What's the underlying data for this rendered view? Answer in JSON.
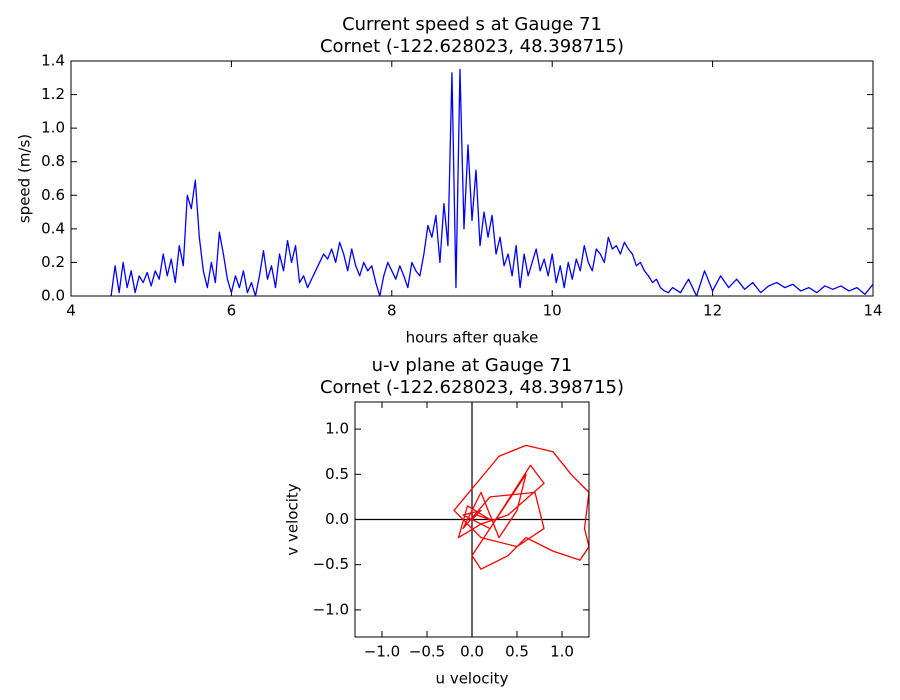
{
  "chart_data": [
    {
      "type": "line",
      "title": "Current speed s at Gauge 71",
      "subtitle": "Cornet  (-122.628023, 48.398715)",
      "x_label": "hours after quake",
      "y_label": "speed (m/s)",
      "color": "#0000ff",
      "x": [
        4.5,
        4.55,
        4.6,
        4.65,
        4.7,
        4.75,
        4.8,
        4.85,
        4.9,
        4.95,
        5.0,
        5.05,
        5.1,
        5.15,
        5.2,
        5.25,
        5.3,
        5.35,
        5.4,
        5.45,
        5.5,
        5.55,
        5.6,
        5.65,
        5.7,
        5.75,
        5.8,
        5.85,
        5.9,
        5.95,
        6.0,
        6.05,
        6.1,
        6.15,
        6.2,
        6.25,
        6.3,
        6.35,
        6.4,
        6.45,
        6.5,
        6.55,
        6.6,
        6.65,
        6.7,
        6.75,
        6.8,
        6.85,
        6.9,
        6.95,
        7.0,
        7.05,
        7.1,
        7.15,
        7.2,
        7.25,
        7.3,
        7.35,
        7.4,
        7.45,
        7.5,
        7.55,
        7.6,
        7.65,
        7.7,
        7.75,
        7.8,
        7.85,
        7.9,
        7.95,
        8.0,
        8.05,
        8.1,
        8.15,
        8.2,
        8.25,
        8.3,
        8.35,
        8.4,
        8.45,
        8.5,
        8.55,
        8.6,
        8.65,
        8.7,
        8.75,
        8.8,
        8.85,
        8.9,
        8.95,
        9.0,
        9.05,
        9.1,
        9.15,
        9.2,
        9.25,
        9.3,
        9.35,
        9.4,
        9.45,
        9.5,
        9.55,
        9.6,
        9.65,
        9.7,
        9.75,
        9.8,
        9.85,
        9.9,
        9.95,
        10.0,
        10.05,
        10.1,
        10.15,
        10.2,
        10.25,
        10.3,
        10.35,
        10.4,
        10.45,
        10.5,
        10.55,
        10.6,
        10.65,
        10.7,
        10.75,
        10.8,
        10.85,
        10.9,
        10.95,
        11.0,
        11.05,
        11.1,
        11.15,
        11.2,
        11.25,
        11.3,
        11.35,
        11.4,
        11.45,
        11.5,
        11.6,
        11.7,
        11.8,
        11.9,
        12.0,
        12.1,
        12.2,
        12.3,
        12.4,
        12.5,
        12.6,
        12.7,
        12.8,
        12.9,
        13.0,
        13.1,
        13.2,
        13.3,
        13.4,
        13.5,
        13.6,
        13.7,
        13.8,
        13.9,
        14.0
      ],
      "values": [
        0.0,
        0.18,
        0.02,
        0.2,
        0.05,
        0.15,
        0.02,
        0.12,
        0.08,
        0.14,
        0.06,
        0.15,
        0.1,
        0.25,
        0.12,
        0.22,
        0.08,
        0.3,
        0.18,
        0.6,
        0.52,
        0.69,
        0.35,
        0.15,
        0.05,
        0.2,
        0.08,
        0.38,
        0.25,
        0.1,
        0.02,
        0.12,
        0.05,
        0.15,
        0.02,
        0.08,
        0.0,
        0.12,
        0.27,
        0.1,
        0.18,
        0.05,
        0.25,
        0.15,
        0.33,
        0.2,
        0.3,
        0.08,
        0.12,
        0.05,
        0.1,
        0.15,
        0.2,
        0.25,
        0.22,
        0.28,
        0.2,
        0.32,
        0.25,
        0.15,
        0.28,
        0.18,
        0.12,
        0.2,
        0.15,
        0.18,
        0.08,
        0.0,
        0.12,
        0.2,
        0.15,
        0.1,
        0.18,
        0.12,
        0.05,
        0.2,
        0.15,
        0.12,
        0.25,
        0.42,
        0.35,
        0.48,
        0.2,
        0.55,
        0.3,
        1.33,
        0.05,
        1.35,
        0.4,
        0.9,
        0.45,
        0.75,
        0.3,
        0.5,
        0.35,
        0.48,
        0.25,
        0.35,
        0.18,
        0.25,
        0.12,
        0.3,
        0.05,
        0.25,
        0.12,
        0.2,
        0.28,
        0.15,
        0.22,
        0.12,
        0.25,
        0.08,
        0.18,
        0.05,
        0.2,
        0.1,
        0.22,
        0.15,
        0.3,
        0.2,
        0.15,
        0.28,
        0.25,
        0.2,
        0.35,
        0.28,
        0.3,
        0.25,
        0.32,
        0.28,
        0.25,
        0.18,
        0.2,
        0.15,
        0.12,
        0.08,
        0.1,
        0.05,
        0.03,
        0.02,
        0.05,
        0.02,
        0.1,
        0.0,
        0.15,
        0.03,
        0.12,
        0.05,
        0.1,
        0.04,
        0.08,
        0.02,
        0.06,
        0.08,
        0.05,
        0.07,
        0.03,
        0.05,
        0.02,
        0.06,
        0.04,
        0.06,
        0.03,
        0.05,
        0.01,
        0.07
      ],
      "xlim": [
        4,
        14
      ],
      "xticks": [
        4,
        6,
        8,
        10,
        12,
        14
      ],
      "ylim": [
        0,
        1.4
      ],
      "yticks": [
        {
          "value": 0,
          "label": "0.0"
        },
        {
          "value": 0.2,
          "label": "0.2"
        },
        {
          "value": 0.4,
          "label": "0.4"
        },
        {
          "value": 0.6,
          "label": "0.6"
        },
        {
          "value": 0.8,
          "label": "0.8"
        },
        {
          "value": 1.0,
          "label": "1.0"
        },
        {
          "value": 1.2,
          "label": "1.2"
        },
        {
          "value": 1.4,
          "label": "1.4"
        }
      ]
    },
    {
      "type": "line",
      "title": "u-v plane at Gauge 71",
      "subtitle": "Cornet  (-122.628023, 48.398715)",
      "x_label": "u velocity",
      "y_label": "v velocity",
      "color": "#ff0000",
      "x": [
        0,
        0.1,
        -0.1,
        0.2,
        0.4,
        0.6,
        0.5,
        0.3,
        0.1,
        -0.1,
        0.2,
        0.7,
        0.8,
        0.5,
        0.1,
        -0.2,
        0.3,
        0.6,
        0.9,
        1.1,
        1.3,
        1.25,
        1.3,
        1.2,
        0.9,
        0.6,
        0.4,
        0.1,
        0.0,
        0.2,
        0.65,
        0.8,
        0.4,
        0.1,
        -0.15,
        -0.05,
        0.2,
        0.05,
        0.0
      ],
      "values": [
        0,
        0.1,
        0.05,
        -0.1,
        0.2,
        0.5,
        0.1,
        -0.2,
        0.3,
        -0.1,
        0.25,
        0.3,
        -0.1,
        -0.3,
        -0.2,
        0.1,
        0.7,
        0.82,
        0.75,
        0.5,
        0.3,
        -0.1,
        -0.3,
        -0.45,
        -0.35,
        -0.2,
        -0.4,
        -0.55,
        -0.4,
        -0.1,
        0.6,
        0.4,
        0.05,
        -0.05,
        -0.2,
        0.15,
        0.0,
        0.05,
        0.0
      ],
      "xlim": [
        -1.3,
        1.3
      ],
      "xticks": [
        {
          "value": -1.0,
          "label": "−1.0"
        },
        {
          "value": -0.5,
          "label": "−0.5"
        },
        {
          "value": 0,
          "label": "0.0"
        },
        {
          "value": 0.5,
          "label": "0.5"
        },
        {
          "value": 1.0,
          "label": "1.0"
        }
      ],
      "ylim": [
        -1.3,
        1.3
      ],
      "yticks": [
        {
          "value": -1.0,
          "label": "−1.0"
        },
        {
          "value": -0.5,
          "label": "−0.5"
        },
        {
          "value": 0,
          "label": "0.0"
        },
        {
          "value": 0.5,
          "label": "0.5"
        },
        {
          "value": 1.0,
          "label": "1.0"
        }
      ]
    }
  ]
}
